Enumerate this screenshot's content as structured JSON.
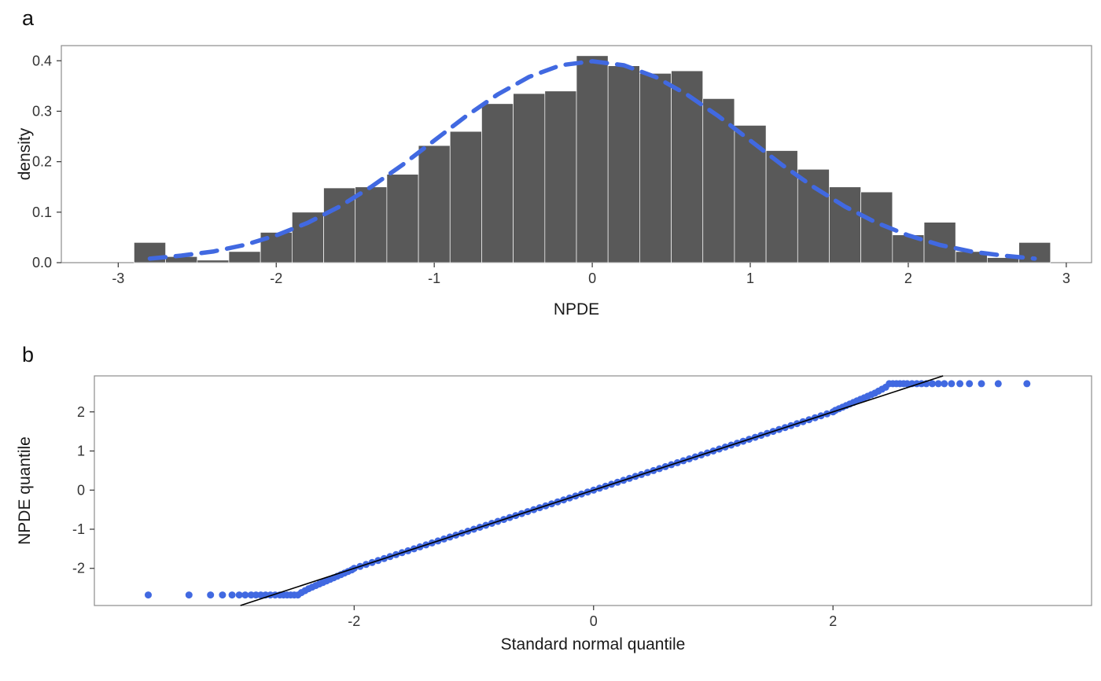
{
  "page": {
    "background": "#ffffff"
  },
  "chart_data": [
    {
      "id": "npde-histogram",
      "type": "bar",
      "panel_label": "a",
      "xlabel": "NPDE",
      "ylabel": "density",
      "x_tick_values": [
        -3,
        -2,
        -1,
        0,
        1,
        2,
        3
      ],
      "x_tick_labels": [
        "-3",
        "-2",
        "-1",
        "0",
        "1",
        "2",
        "3"
      ],
      "y_tick_values": [
        0,
        0.1,
        0.2,
        0.3,
        0.4
      ],
      "y_tick_labels": [
        "0.0",
        "0.1",
        "0.2",
        "0.3",
        "0.4"
      ],
      "xlim": [
        -3.36,
        3.16
      ],
      "ylim": [
        0,
        0.43
      ],
      "grid": false,
      "legend": "none",
      "bar_width": 0.2,
      "bar_color": "#595959",
      "panel_border_color": "#8c8c8c",
      "bin_centers": [
        -2.8,
        -2.6,
        -2.4,
        -2.2,
        -2.0,
        -1.8,
        -1.6,
        -1.4,
        -1.2,
        -1.0,
        -0.8,
        -0.6,
        -0.4,
        -0.2,
        0.0,
        0.2,
        0.4,
        0.6,
        0.8,
        1.0,
        1.2,
        1.4,
        1.6,
        1.8,
        2.0,
        2.2,
        2.4,
        2.6,
        2.8
      ],
      "densities": [
        0.04,
        0.012,
        0.005,
        0.022,
        0.06,
        0.1,
        0.148,
        0.15,
        0.175,
        0.232,
        0.26,
        0.315,
        0.335,
        0.34,
        0.41,
        0.39,
        0.375,
        0.38,
        0.325,
        0.272,
        0.222,
        0.185,
        0.15,
        0.14,
        0.055,
        0.08,
        0.022,
        0.01,
        0.04
      ],
      "overlay": {
        "name": "standard-normal-density-curve",
        "style": "dashed",
        "color": "#4169E1",
        "x": [
          -2.8,
          -2.6,
          -2.4,
          -2.2,
          -2.0,
          -1.8,
          -1.6,
          -1.4,
          -1.2,
          -1.0,
          -0.8,
          -0.6,
          -0.4,
          -0.2,
          0.0,
          0.2,
          0.4,
          0.6,
          0.8,
          1.0,
          1.2,
          1.4,
          1.6,
          1.8,
          2.0,
          2.2,
          2.4,
          2.6,
          2.8
        ],
        "y": [
          0.008,
          0.014,
          0.022,
          0.035,
          0.054,
          0.079,
          0.111,
          0.15,
          0.194,
          0.242,
          0.29,
          0.333,
          0.368,
          0.391,
          0.399,
          0.391,
          0.368,
          0.333,
          0.29,
          0.242,
          0.194,
          0.15,
          0.111,
          0.079,
          0.054,
          0.035,
          0.022,
          0.014,
          0.008
        ]
      }
    },
    {
      "id": "npde-qq-plot",
      "type": "scatter",
      "panel_label": "b",
      "xlabel": "Standard normal quantile",
      "ylabel": "NPDE quantile",
      "x_tick_values": [
        -2,
        0,
        2
      ],
      "x_tick_labels": [
        "-2",
        "0",
        "2"
      ],
      "y_tick_values": [
        -2,
        -1,
        0,
        1,
        2
      ],
      "y_tick_labels": [
        "-2",
        "-1",
        "0",
        "1",
        "2"
      ],
      "xlim": [
        -4.17,
        4.16
      ],
      "ylim": [
        -2.95,
        2.92
      ],
      "grid": false,
      "legend": "none",
      "point_color": "#4169E1",
      "panel_border_color": "#8c8c8c",
      "reference_line": {
        "slope": 1,
        "intercept": 0,
        "color": "#000000"
      },
      "points": [
        [
          -3.72,
          -2.68
        ],
        [
          -3.38,
          -2.68
        ],
        [
          -3.2,
          -2.68
        ],
        [
          -3.1,
          -2.68
        ],
        [
          -3.02,
          -2.68
        ],
        [
          -2.96,
          -2.68
        ],
        [
          -2.91,
          -2.68
        ],
        [
          -2.86,
          -2.68
        ],
        [
          -2.82,
          -2.68
        ],
        [
          -2.78,
          -2.68
        ],
        [
          -2.74,
          -2.68
        ],
        [
          -2.7,
          -2.68
        ],
        [
          -2.66,
          -2.68
        ],
        [
          -2.62,
          -2.68
        ],
        [
          -2.59,
          -2.68
        ],
        [
          -2.56,
          -2.68
        ],
        [
          -2.53,
          -2.68
        ],
        [
          -2.5,
          -2.68
        ],
        [
          -2.47,
          -2.68
        ],
        [
          -2.44,
          -2.62
        ],
        [
          -2.41,
          -2.57
        ],
        [
          -2.38,
          -2.52
        ],
        [
          -2.35,
          -2.48
        ],
        [
          -2.32,
          -2.44
        ],
        [
          -2.29,
          -2.4
        ],
        [
          -2.26,
          -2.36
        ],
        [
          -2.23,
          -2.32
        ],
        [
          -2.2,
          -2.28
        ],
        [
          -2.17,
          -2.24
        ],
        [
          -2.14,
          -2.2
        ],
        [
          -2.11,
          -2.16
        ],
        [
          -2.08,
          -2.12
        ],
        [
          -2.05,
          -2.08
        ],
        [
          -2.02,
          -2.04
        ],
        [
          -2,
          -2
        ],
        [
          -1.95,
          -1.95
        ],
        [
          -1.9,
          -1.9
        ],
        [
          -1.85,
          -1.85
        ],
        [
          -1.8,
          -1.8
        ],
        [
          -1.75,
          -1.75
        ],
        [
          -1.7,
          -1.7
        ],
        [
          -1.65,
          -1.65
        ],
        [
          -1.6,
          -1.6
        ],
        [
          -1.55,
          -1.55
        ],
        [
          -1.5,
          -1.5
        ],
        [
          -1.45,
          -1.45
        ],
        [
          -1.4,
          -1.4
        ],
        [
          -1.35,
          -1.35
        ],
        [
          -1.3,
          -1.3
        ],
        [
          -1.25,
          -1.25
        ],
        [
          -1.2,
          -1.2
        ],
        [
          -1.15,
          -1.15
        ],
        [
          -1.1,
          -1.1
        ],
        [
          -1.05,
          -1.05
        ],
        [
          -1,
          -1
        ],
        [
          -0.95,
          -0.95
        ],
        [
          -0.9,
          -0.9
        ],
        [
          -0.85,
          -0.85
        ],
        [
          -0.8,
          -0.8
        ],
        [
          -0.75,
          -0.75
        ],
        [
          -0.7,
          -0.7
        ],
        [
          -0.65,
          -0.65
        ],
        [
          -0.6,
          -0.6
        ],
        [
          -0.55,
          -0.55
        ],
        [
          -0.5,
          -0.5
        ],
        [
          -0.45,
          -0.45
        ],
        [
          -0.4,
          -0.4
        ],
        [
          -0.35,
          -0.35
        ],
        [
          -0.3,
          -0.3
        ],
        [
          -0.25,
          -0.25
        ],
        [
          -0.2,
          -0.2
        ],
        [
          -0.15,
          -0.15
        ],
        [
          -0.1,
          -0.1
        ],
        [
          -0.05,
          -0.05
        ],
        [
          0,
          0
        ],
        [
          0.05,
          0.05
        ],
        [
          0.1,
          0.1
        ],
        [
          0.15,
          0.15
        ],
        [
          0.2,
          0.2
        ],
        [
          0.25,
          0.25
        ],
        [
          0.3,
          0.3
        ],
        [
          0.35,
          0.35
        ],
        [
          0.4,
          0.4
        ],
        [
          0.45,
          0.45
        ],
        [
          0.5,
          0.5
        ],
        [
          0.55,
          0.55
        ],
        [
          0.6,
          0.6
        ],
        [
          0.65,
          0.65
        ],
        [
          0.7,
          0.7
        ],
        [
          0.75,
          0.75
        ],
        [
          0.8,
          0.8
        ],
        [
          0.85,
          0.85
        ],
        [
          0.9,
          0.9
        ],
        [
          0.95,
          0.95
        ],
        [
          1,
          1
        ],
        [
          1.05,
          1.05
        ],
        [
          1.1,
          1.1
        ],
        [
          1.15,
          1.15
        ],
        [
          1.2,
          1.2
        ],
        [
          1.25,
          1.25
        ],
        [
          1.3,
          1.3
        ],
        [
          1.35,
          1.35
        ],
        [
          1.4,
          1.4
        ],
        [
          1.45,
          1.45
        ],
        [
          1.5,
          1.5
        ],
        [
          1.55,
          1.55
        ],
        [
          1.6,
          1.6
        ],
        [
          1.65,
          1.65
        ],
        [
          1.7,
          1.7
        ],
        [
          1.75,
          1.75
        ],
        [
          1.8,
          1.8
        ],
        [
          1.85,
          1.85
        ],
        [
          1.9,
          1.9
        ],
        [
          1.95,
          1.95
        ],
        [
          2,
          2
        ],
        [
          2.02,
          2.04
        ],
        [
          2.05,
          2.08
        ],
        [
          2.08,
          2.12
        ],
        [
          2.11,
          2.16
        ],
        [
          2.14,
          2.2
        ],
        [
          2.17,
          2.24
        ],
        [
          2.2,
          2.28
        ],
        [
          2.23,
          2.32
        ],
        [
          2.26,
          2.36
        ],
        [
          2.29,
          2.4
        ],
        [
          2.32,
          2.44
        ],
        [
          2.35,
          2.48
        ],
        [
          2.38,
          2.53
        ],
        [
          2.41,
          2.58
        ],
        [
          2.44,
          2.63
        ],
        [
          2.47,
          2.72
        ],
        [
          2.5,
          2.72
        ],
        [
          2.53,
          2.72
        ],
        [
          2.56,
          2.72
        ],
        [
          2.59,
          2.72
        ],
        [
          2.62,
          2.72
        ],
        [
          2.66,
          2.72
        ],
        [
          2.7,
          2.72
        ],
        [
          2.74,
          2.72
        ],
        [
          2.78,
          2.72
        ],
        [
          2.83,
          2.72
        ],
        [
          2.88,
          2.72
        ],
        [
          2.93,
          2.72
        ],
        [
          2.99,
          2.72
        ],
        [
          3.06,
          2.72
        ],
        [
          3.14,
          2.72
        ],
        [
          3.24,
          2.72
        ],
        [
          3.38,
          2.72
        ],
        [
          3.62,
          2.72
        ]
      ]
    }
  ]
}
